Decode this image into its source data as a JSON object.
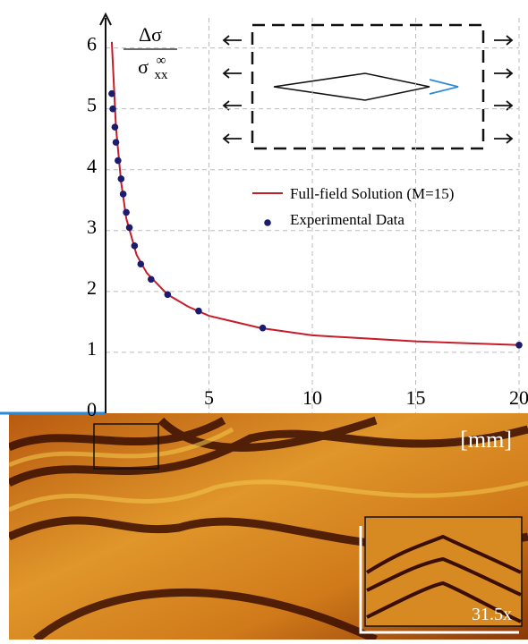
{
  "chart_data": {
    "type": "line_scatter",
    "y_label": {
      "numerator": "Δσ",
      "denominator": "σ",
      "superscript": "∞",
      "subscript": "xx"
    },
    "x_unit": "[mm]",
    "inset_label": "31.5x",
    "xlim": [
      0,
      20
    ],
    "xticks": [
      0,
      5,
      10,
      15,
      20
    ],
    "ylim": [
      0,
      6.2
    ],
    "yticks": [
      0,
      1,
      2,
      3,
      4,
      5,
      6
    ],
    "grid": true,
    "legend": "upper right",
    "series": [
      {
        "name": "Full-field Solution (M=15)",
        "color": "#c41e2a",
        "kind": "line",
        "x": [
          0.3,
          0.5,
          0.75,
          1,
          1.5,
          2,
          3,
          4,
          5,
          7.5,
          10,
          15,
          20
        ],
        "values": [
          6.1,
          4.7,
          3.8,
          3.2,
          2.6,
          2.3,
          1.95,
          1.75,
          1.6,
          1.4,
          1.28,
          1.18,
          1.12
        ]
      },
      {
        "name": "Experimental Data",
        "color": "#1c1c6e",
        "kind": "scatter",
        "x": [
          0.3,
          0.35,
          0.45,
          0.5,
          0.6,
          0.75,
          0.85,
          1.0,
          1.15,
          1.4,
          1.7,
          2.2,
          3.0,
          4.5,
          7.6,
          20
        ],
        "values": [
          5.25,
          5.0,
          4.7,
          4.45,
          4.15,
          3.85,
          3.6,
          3.3,
          3.05,
          2.75,
          2.45,
          2.2,
          1.95,
          1.68,
          1.4,
          1.12
        ]
      }
    ]
  }
}
